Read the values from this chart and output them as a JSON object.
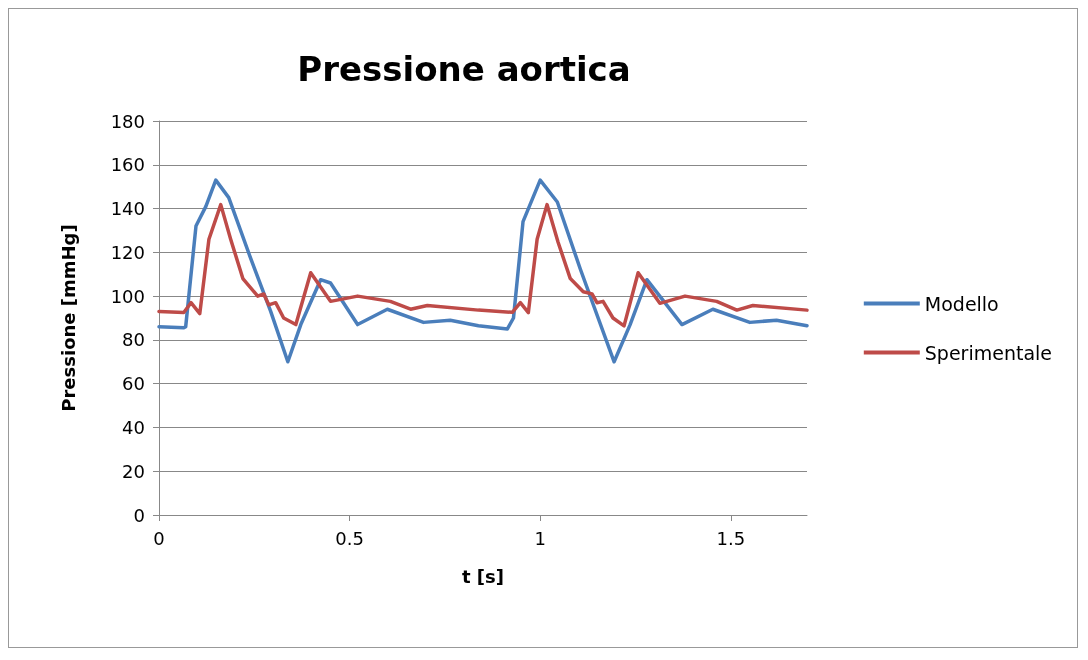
{
  "chart_data": {
    "type": "line",
    "title": "Pressione aortica",
    "xlabel": "t [s]",
    "ylabel": "Pressione [mmHg]",
    "xlim": [
      0,
      1.7
    ],
    "xticks": [
      0,
      0.5,
      1,
      1.5
    ],
    "ylim": [
      0,
      180
    ],
    "yticks": [
      0,
      20,
      40,
      60,
      80,
      100,
      120,
      140,
      160,
      180
    ],
    "grid": "y",
    "legend": "right",
    "marker": "none",
    "line_style": "solid",
    "series": [
      {
        "name": "Modello",
        "color": "#4a7ebb",
        "x": [
          0,
          0.065,
          0.07,
          0.097,
          0.123,
          0.149,
          0.183,
          0.241,
          0.293,
          0.338,
          0.372,
          0.424,
          0.45,
          0.521,
          0.599,
          0.694,
          0.764,
          0.838,
          0.914,
          0.93,
          0.955,
          1.0,
          1.045,
          1.105,
          1.194,
          1.236,
          1.28,
          1.372,
          1.453,
          1.55,
          1.62,
          1.7
        ],
        "values": [
          86,
          85.5,
          86,
          132,
          141,
          153,
          145,
          117,
          93,
          70,
          87,
          107.5,
          106,
          87,
          94,
          88,
          89,
          86.5,
          85,
          90,
          134,
          153,
          143,
          112.5,
          70,
          87,
          107.5,
          87,
          94,
          88,
          89,
          86.5
        ]
      },
      {
        "name": "Sperimentale",
        "color": "#be4b48",
        "x": [
          0,
          0.065,
          0.084,
          0.107,
          0.131,
          0.162,
          0.188,
          0.22,
          0.259,
          0.275,
          0.288,
          0.306,
          0.327,
          0.359,
          0.398,
          0.45,
          0.521,
          0.607,
          0.66,
          0.704,
          0.838,
          0.927,
          0.948,
          0.969,
          0.992,
          1.018,
          1.047,
          1.079,
          1.113,
          1.136,
          1.149,
          1.165,
          1.191,
          1.22,
          1.257,
          1.314,
          1.38,
          1.463,
          1.516,
          1.558,
          1.7
        ],
        "values": [
          93,
          92.5,
          97,
          92,
          126,
          141.8,
          126,
          108,
          100,
          101,
          96,
          97,
          90,
          87,
          110.7,
          97.6,
          100,
          97.6,
          94,
          95.7,
          93.6,
          92.6,
          97,
          92.5,
          126,
          141.8,
          124.6,
          108,
          102,
          101,
          97,
          97.6,
          90,
          86.4,
          110.7,
          96.7,
          100,
          97.6,
          93.6,
          95.7,
          93.6
        ]
      }
    ]
  }
}
